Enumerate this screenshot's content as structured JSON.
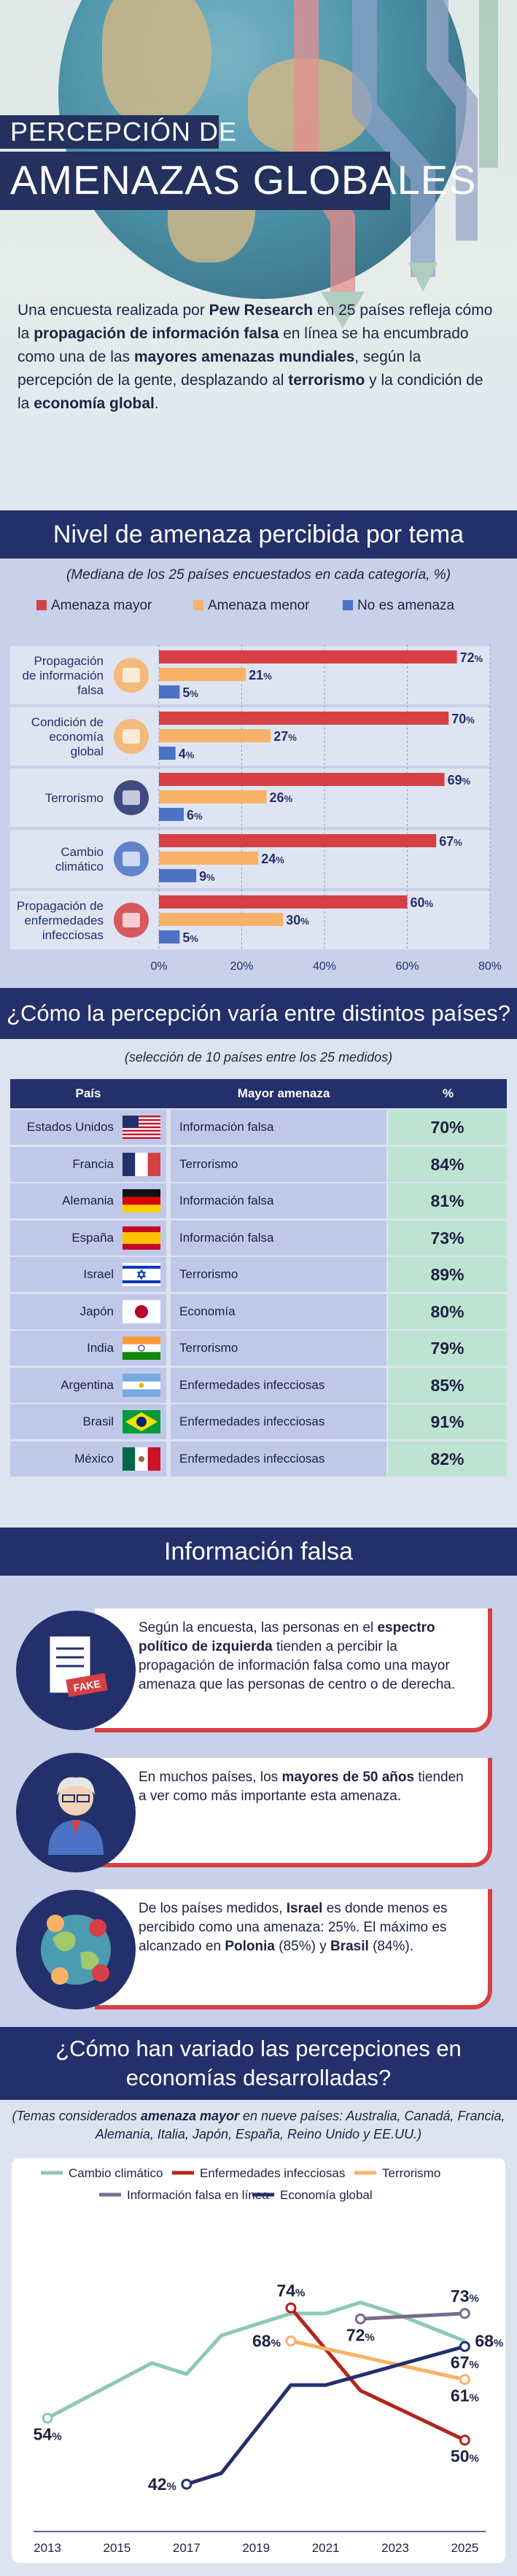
{
  "hero": {
    "title_line1": "PERCEPCIÓN DE",
    "title_line2": "AMENAZAS GLOBALES",
    "intro_parts": [
      {
        "t": "Una encuesta realizada por ",
        "b": false
      },
      {
        "t": "Pew Research",
        "b": true
      },
      {
        "t": " en 25 países refleja cómo la ",
        "b": false
      },
      {
        "t": "propagación de información falsa",
        "b": true
      },
      {
        "t": " en línea se ha encumbrado como una de las ",
        "b": false
      },
      {
        "t": "mayores amenazas mundiales",
        "b": true
      },
      {
        "t": ", según la percepción de la gente, desplazando al ",
        "b": false
      },
      {
        "t": "terrorismo",
        "b": true
      },
      {
        "t": " y la condición de la ",
        "b": false
      },
      {
        "t": "economía global",
        "b": true
      },
      {
        "t": ".",
        "b": false
      }
    ]
  },
  "section1": {
    "title": "Nivel de amenaza percibida por tema",
    "subtitle": "(Mediana de los 25 países encuestados en cada categoría, %)"
  },
  "chart_data": [
    {
      "type": "bar",
      "orientation": "horizontal",
      "title": "Nivel de amenaza percibida por tema",
      "subtitle": "(Mediana de los 25 países encuestados en cada categoría, %)",
      "categories": [
        "Propagación de información falsa",
        "Condición de economía global",
        "Terrorismo",
        "Cambio climático",
        "Propagación de enfermedades infecciosas"
      ],
      "category_lines": [
        [
          "Propagación",
          "de información",
          "falsa"
        ],
        [
          "Condición de",
          "economía",
          "global"
        ],
        [
          "Terrorismo"
        ],
        [
          "Cambio",
          "climático"
        ],
        [
          "Propagación de",
          "enfermedades",
          "infecciosas"
        ]
      ],
      "series": [
        {
          "name": "Amenaza mayor",
          "values": [
            72,
            70,
            69,
            67,
            60
          ],
          "color": "#d64045"
        },
        {
          "name": "Amenaza menor",
          "values": [
            21,
            27,
            26,
            24,
            30
          ],
          "color": "#f7b267"
        },
        {
          "name": "No es amenaza",
          "values": [
            5,
            4,
            6,
            9,
            5
          ],
          "color": "#4b72c4"
        }
      ],
      "xlim": [
        0,
        80
      ],
      "xticks": [
        0,
        20,
        40,
        60,
        80
      ],
      "tick_suffix": "%",
      "legend": "top",
      "grid": true
    },
    {
      "type": "line",
      "title": "¿Cómo han variado las percepciones en economías desarrolladas?",
      "subtitle": "(Temas considerados amenaza mayor en nueve países: Australia, Canadá, Francia, Alemania, Italia, Japón, España, Reino Unido y EE.UU.)",
      "xticks": [
        2013,
        2015,
        2017,
        2019,
        2021,
        2023,
        2025
      ],
      "xlim": [
        2012.6,
        2025.6
      ],
      "ylim": [
        35,
        80
      ],
      "legend": "top",
      "series": [
        {
          "name": "Cambio climático",
          "color": "#8cc9b3",
          "points": [
            [
              2013,
              54
            ],
            [
              2016,
              64
            ],
            [
              2017,
              62
            ],
            [
              2018,
              69
            ],
            [
              2020,
              73
            ],
            [
              2021,
              73
            ],
            [
              2022,
              75
            ],
            [
              2023,
              73
            ],
            [
              2025,
              68
            ]
          ],
          "labels": [
            [
              2013,
              54,
              "54%",
              "below"
            ]
          ]
        },
        {
          "name": "Enfermedades infecciosas",
          "color": "#b3241c",
          "points": [
            [
              2020,
              74
            ],
            [
              2022,
              59
            ],
            [
              2023,
              56
            ],
            [
              2025,
              50
            ]
          ],
          "labels": [
            [
              2020,
              74,
              "74%",
              "above"
            ],
            [
              2025,
              50,
              "50%",
              "below"
            ]
          ]
        },
        {
          "name": "Terrorismo",
          "color": "#f7b267",
          "points": [
            [
              2020,
              68
            ],
            [
              2025,
              61
            ]
          ],
          "labels": [
            [
              2020,
              68,
              "68%",
              "left"
            ],
            [
              2025,
              61,
              "61%",
              "below"
            ]
          ]
        },
        {
          "name": "Información falsa en línea",
          "color": "#7a6a8d",
          "points": [
            [
              2022,
              72
            ],
            [
              2025,
              73
            ]
          ],
          "labels": [
            [
              2022,
              72,
              "72%",
              "below"
            ],
            [
              2025,
              73,
              "73%",
              "above"
            ]
          ]
        },
        {
          "name": "Economía global",
          "color": "#24306b",
          "points": [
            [
              2017,
              42
            ],
            [
              2018,
              44
            ],
            [
              2020,
              60
            ],
            [
              2021,
              60
            ],
            [
              2025,
              67
            ]
          ],
          "labels": [
            [
              2017,
              42,
              "42%",
              "left"
            ],
            [
              2025,
              67,
              "67%",
              "below"
            ]
          ]
        }
      ],
      "extra_labels": [
        [
          2025,
          68,
          "68%",
          "right"
        ]
      ]
    }
  ],
  "section2": {
    "title": "¿Cómo la percepción varía entre distintos países?",
    "subtitle": "(selección de 10 países entre los 25 medidos)",
    "headers": [
      "País",
      "Mayor amenaza",
      "%"
    ],
    "rows": [
      {
        "country": "Estados Unidos",
        "flag": "us",
        "threat": "Información falsa",
        "pct": "70%"
      },
      {
        "country": "Francia",
        "flag": "fr",
        "threat": "Terrorismo",
        "pct": "84%"
      },
      {
        "country": "Alemania",
        "flag": "de",
        "threat": "Información falsa",
        "pct": "81%"
      },
      {
        "country": "España",
        "flag": "es",
        "threat": "Información falsa",
        "pct": "73%"
      },
      {
        "country": "Israel",
        "flag": "il",
        "threat": "Terrorismo",
        "pct": "89%"
      },
      {
        "country": "Japón",
        "flag": "jp",
        "threat": "Economía",
        "pct": "80%"
      },
      {
        "country": "India",
        "flag": "in",
        "threat": "Terrorismo",
        "pct": "79%"
      },
      {
        "country": "Argentina",
        "flag": "ar",
        "threat": "Enfermedades infecciosas",
        "pct": "85%"
      },
      {
        "country": "Brasil",
        "flag": "br",
        "threat": "Enfermedades infecciosas",
        "pct": "91%"
      },
      {
        "country": "México",
        "flag": "mx",
        "threat": "Enfermedades infecciosas",
        "pct": "82%"
      }
    ]
  },
  "section3": {
    "title": "Información falsa",
    "fake_label": "FAKE",
    "cards": [
      {
        "icon": "fake-document-icon",
        "parts": [
          {
            "t": "Según la encuesta, las personas en el ",
            "b": false
          },
          {
            "t": "espectro político de izquierda",
            "b": true
          },
          {
            "t": " tienden a percibir la propagación de información falsa como una mayor amenaza que las personas de centro o de derecha.",
            "b": false
          }
        ]
      },
      {
        "icon": "elderly-man-icon",
        "parts": [
          {
            "t": "En muchos países, los ",
            "b": false
          },
          {
            "t": "mayores de 50 años",
            "b": true
          },
          {
            "t": " tienden a ver como más importante esta amenaza.",
            "b": false
          }
        ]
      },
      {
        "icon": "globe-network-icon",
        "parts": [
          {
            "t": "De los países medidos, ",
            "b": false
          },
          {
            "t": "Israel",
            "b": true
          },
          {
            "t": " es donde menos es percibido como una amenaza: 25%. El máximo es alcanzado en ",
            "b": false
          },
          {
            "t": "Polonia",
            "b": true
          },
          {
            "t": " (85%) y ",
            "b": false
          },
          {
            "t": "Brasil",
            "b": true
          },
          {
            "t": " (84%).",
            "b": false
          }
        ]
      }
    ]
  },
  "section4": {
    "title_line1": "¿Cómo han variado las percepciones en",
    "title_line2": "economías desarrolladas?",
    "subtitle_parts": [
      {
        "t": "(Temas considerados ",
        "b": false
      },
      {
        "t": "amenaza mayor",
        "b": true
      },
      {
        "t": " en nueve países: Australia, Canadá, Francia, Alemania, Italia, Japón, España, Reino Unido y EE.UU.)",
        "b": false
      }
    ]
  },
  "colors": {
    "navy": "#24306b",
    "red": "#d64045",
    "orange": "#f7b267",
    "blue": "#4b72c4",
    "mint": "#bfe3d3",
    "lavender": "#c8d0ea"
  }
}
